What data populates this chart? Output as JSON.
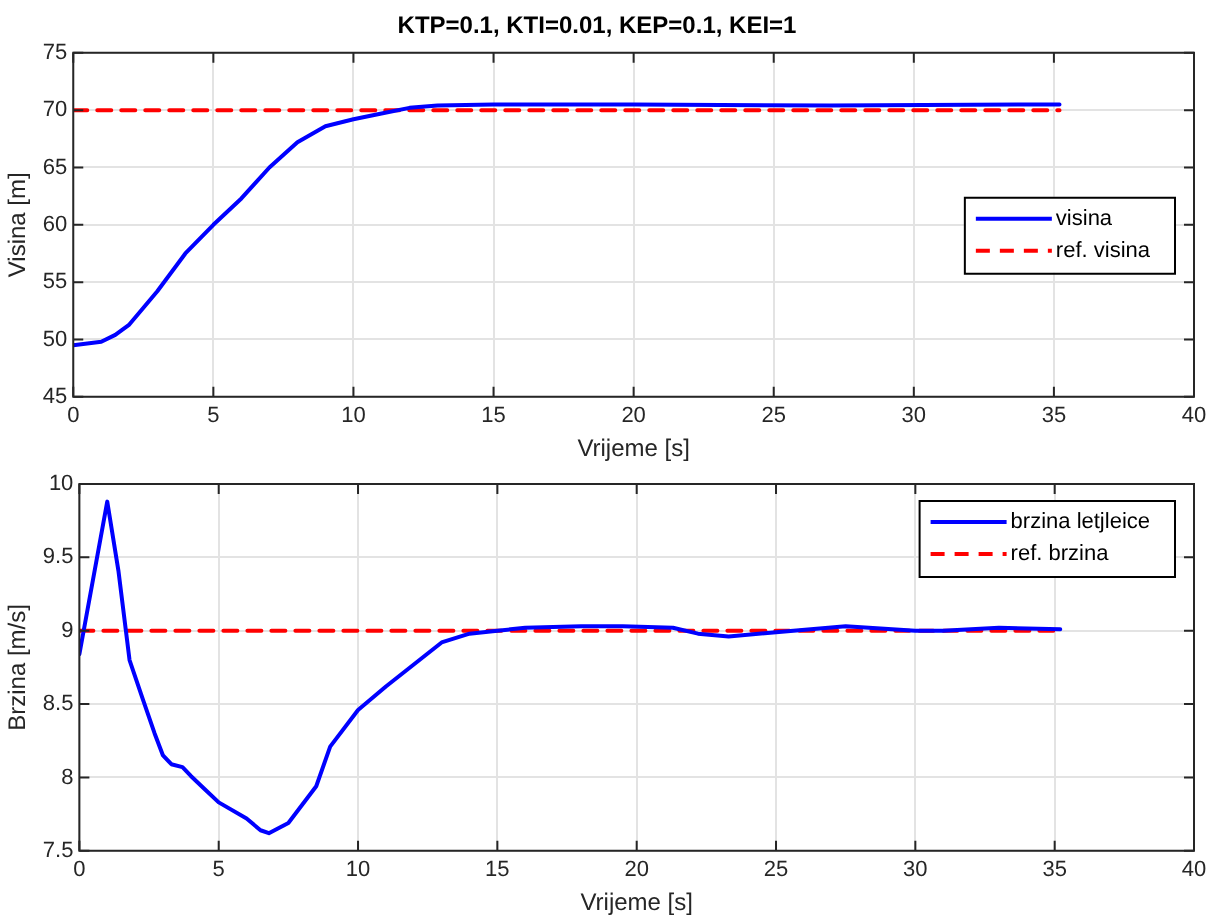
{
  "chart_data": [
    {
      "type": "line",
      "title": "KTP=0.1, KTI=0.01, KEP=0.1, KEI=1",
      "xlabel": "Vrijeme [s]",
      "ylabel": "Visina [m]",
      "xlim": [
        0,
        40
      ],
      "xticks": [
        0,
        5,
        10,
        15,
        20,
        25,
        30,
        35,
        40
      ],
      "ylim": [
        45,
        75
      ],
      "yticks": [
        45,
        50,
        55,
        60,
        65,
        70,
        75
      ],
      "grid": true,
      "legend": "right",
      "marker": "none",
      "series": [
        {
          "name": "visina",
          "color": "#0000ff",
          "line_style": "solid",
          "x": [
            0,
            1,
            1.5,
            2,
            3,
            4,
            5,
            6,
            7,
            8,
            9,
            10,
            11,
            12,
            13,
            15,
            20,
            27,
            35.2
          ],
          "values": [
            49.5,
            49.8,
            50.4,
            51.3,
            54.2,
            57.5,
            60,
            62.3,
            65,
            67.2,
            68.6,
            69.2,
            69.7,
            70.2,
            70.4,
            70.5,
            70.5,
            70.4,
            70.5
          ]
        },
        {
          "name": "ref. visina",
          "color": "#ff0000",
          "line_style": "dashed",
          "x": [
            0,
            35.2
          ],
          "values": [
            70,
            70
          ]
        }
      ]
    },
    {
      "type": "line",
      "xlabel": "Vrijeme [s]",
      "ylabel": "Brzina [m/s]",
      "xlim": [
        0,
        40
      ],
      "xticks": [
        0,
        5,
        10,
        15,
        20,
        25,
        30,
        35,
        40
      ],
      "ylim": [
        7.5,
        10
      ],
      "yticks": [
        7.5,
        8,
        8.5,
        9,
        9.5,
        10
      ],
      "grid": true,
      "legend": "top right",
      "marker": "none",
      "series": [
        {
          "name": "brzina letjleice",
          "color": "#0000ff",
          "line_style": "solid",
          "x": [
            0,
            1,
            1.4,
            1.8,
            2.3,
            2.7,
            3,
            3.3,
            3.7,
            4,
            4.5,
            5,
            6,
            6.5,
            6.8,
            7.5,
            8.5,
            9,
            10,
            11,
            12,
            13,
            14,
            15,
            16,
            18,
            19.5,
            21.3,
            22.2,
            23.3,
            25,
            27.5,
            30,
            31,
            33,
            35.2
          ],
          "values": [
            8.84,
            9.88,
            9.41,
            8.8,
            8.52,
            8.3,
            8.15,
            8.09,
            8.07,
            8.01,
            7.92,
            7.83,
            7.72,
            7.64,
            7.62,
            7.69,
            7.94,
            8.21,
            8.46,
            8.62,
            8.77,
            8.92,
            8.98,
            9,
            9.02,
            9.03,
            9.03,
            9.02,
            8.98,
            8.96,
            8.99,
            9.03,
            9,
            9,
            9.02,
            9.01
          ]
        },
        {
          "name": "ref. brzina",
          "color": "#ff0000",
          "line_style": "dashed",
          "x": [
            0,
            35.2
          ],
          "values": [
            9,
            9
          ]
        }
      ]
    }
  ]
}
